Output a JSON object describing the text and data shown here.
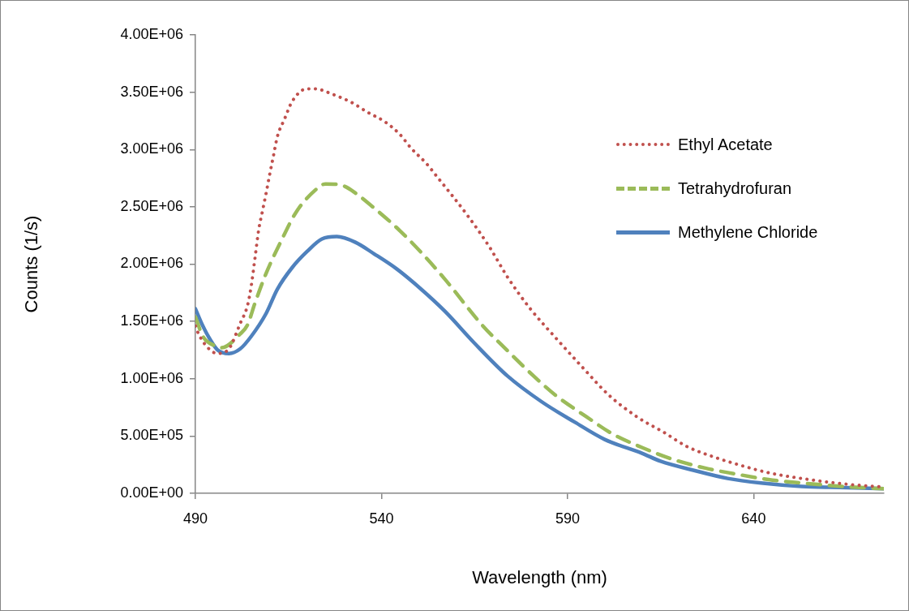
{
  "chart_data": {
    "type": "line",
    "xlabel": "Wavelength (nm)",
    "ylabel": "Counts (1/s)",
    "xlim": [
      490,
      675
    ],
    "xticks": [
      490,
      540,
      590,
      640
    ],
    "ylim": [
      0,
      4000000
    ],
    "yticks": [
      {
        "value": 0,
        "label": "0.00E+00"
      },
      {
        "value": 500000,
        "label": "5.00E+05"
      },
      {
        "value": 1000000,
        "label": "1.00E+06"
      },
      {
        "value": 1500000,
        "label": "1.50E+06"
      },
      {
        "value": 2000000,
        "label": "2.00E+06"
      },
      {
        "value": 2500000,
        "label": "2.50E+06"
      },
      {
        "value": 3000000,
        "label": "3.00E+06"
      },
      {
        "value": 3500000,
        "label": "3.50E+06"
      },
      {
        "value": 4000000,
        "label": "4.00E+06"
      }
    ],
    "grid": false,
    "legend": "top right",
    "marker": "none",
    "series": [
      {
        "name": "Ethyl Acetate",
        "color": "#c0504d",
        "line_style": "dotted",
        "x": [
          490,
          491,
          494,
          496,
          499,
          500,
          502,
          504,
          505,
          506,
          507,
          508,
          509,
          510,
          511,
          512,
          514,
          516,
          520,
          522,
          527,
          532,
          536,
          541,
          545,
          548,
          552,
          555,
          563,
          569,
          574,
          580,
          587,
          594,
          601,
          609,
          616,
          622,
          630,
          637,
          644,
          655,
          665,
          675
        ],
        "values": [
          1460000,
          1380000,
          1250000,
          1220000,
          1260000,
          1320000,
          1480000,
          1640000,
          1810000,
          2050000,
          2300000,
          2460000,
          2620000,
          2790000,
          2950000,
          3110000,
          3270000,
          3420000,
          3530000,
          3530000,
          3480000,
          3410000,
          3330000,
          3240000,
          3130000,
          3010000,
          2880000,
          2760000,
          2430000,
          2150000,
          1880000,
          1610000,
          1350000,
          1100000,
          860000,
          660000,
          530000,
          410000,
          310000,
          240000,
          180000,
          120000,
          80000,
          55000
        ]
      },
      {
        "name": "Tetrahydrofuran",
        "color": "#9bbb59",
        "line_style": "dashed",
        "x": [
          490,
          492,
          495,
          497,
          502,
          504,
          506,
          509,
          513,
          517,
          522,
          525,
          530,
          533,
          538,
          545,
          551,
          557,
          567,
          574,
          581,
          587,
          595,
          602,
          610,
          618,
          627,
          635,
          644,
          653,
          664,
          675
        ],
        "values": [
          1540000,
          1370000,
          1290000,
          1270000,
          1390000,
          1470000,
          1660000,
          1920000,
          2200000,
          2450000,
          2640000,
          2700000,
          2680000,
          2620000,
          2490000,
          2290000,
          2090000,
          1870000,
          1470000,
          1240000,
          1020000,
          850000,
          670000,
          520000,
          400000,
          300000,
          220000,
          170000,
          120000,
          90000,
          60000,
          40000
        ]
      },
      {
        "name": "Methylene Chloride",
        "color": "#4f81bd",
        "line_style": "solid",
        "x": [
          490,
          492,
          494,
          496,
          499,
          502,
          505,
          509,
          512,
          516,
          520,
          524,
          528,
          533,
          538,
          544,
          550,
          557,
          565,
          574,
          583,
          592,
          600,
          610,
          615,
          624,
          633,
          642,
          653,
          665,
          675
        ],
        "values": [
          1610000,
          1460000,
          1340000,
          1250000,
          1220000,
          1260000,
          1370000,
          1570000,
          1780000,
          1970000,
          2110000,
          2220000,
          2240000,
          2190000,
          2090000,
          1960000,
          1800000,
          1590000,
          1310000,
          1020000,
          800000,
          620000,
          470000,
          350000,
          280000,
          200000,
          130000,
          90000,
          60000,
          50000,
          40000
        ]
      }
    ]
  }
}
